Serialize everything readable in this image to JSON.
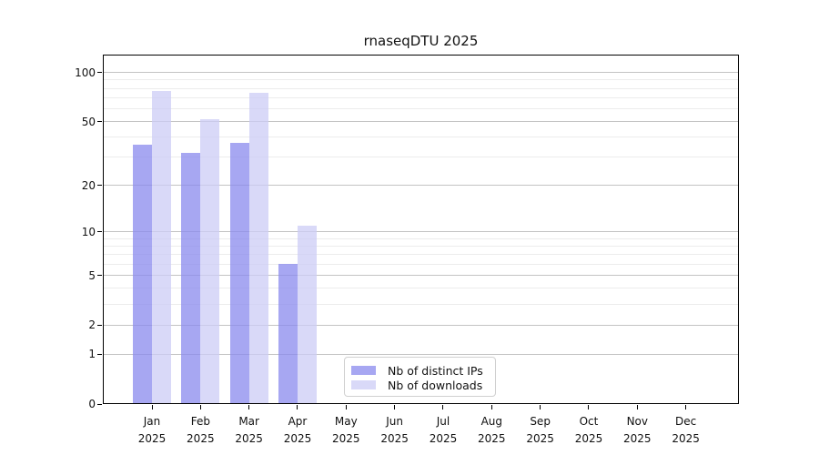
{
  "chart_data": {
    "type": "bar",
    "title": "rnaseqDTU 2025",
    "scale": "log1p",
    "ylim": [
      0,
      128
    ],
    "grid": true,
    "legend_position": "bottom-center-inside",
    "categories": [
      {
        "month": "Jan",
        "year": "2025"
      },
      {
        "month": "Feb",
        "year": "2025"
      },
      {
        "month": "Mar",
        "year": "2025"
      },
      {
        "month": "Apr",
        "year": "2025"
      },
      {
        "month": "May",
        "year": "2025"
      },
      {
        "month": "Jun",
        "year": "2025"
      },
      {
        "month": "Jul",
        "year": "2025"
      },
      {
        "month": "Aug",
        "year": "2025"
      },
      {
        "month": "Sep",
        "year": "2025"
      },
      {
        "month": "Oct",
        "year": "2025"
      },
      {
        "month": "Nov",
        "year": "2025"
      },
      {
        "month": "Dec",
        "year": "2025"
      }
    ],
    "series": [
      {
        "name": "Nb of distinct IPs",
        "color": "#a7a7f2",
        "fill": "rgba(138,138,238,0.75)",
        "values": [
          36,
          32,
          37,
          6,
          null,
          null,
          null,
          null,
          null,
          null,
          null,
          null
        ]
      },
      {
        "name": "Nb of downloads",
        "color": "#d9d9f8",
        "fill": "rgba(204,204,246,0.75)",
        "values": [
          77,
          52,
          75,
          11,
          null,
          null,
          null,
          null,
          null,
          null,
          null,
          null
        ]
      }
    ],
    "yticks": [
      0,
      1,
      2,
      5,
      10,
      20,
      50,
      100
    ],
    "minor_gridlines": [
      3,
      4,
      6,
      7,
      8,
      9,
      30,
      40,
      60,
      70,
      80,
      90
    ],
    "axis_color": "#000000",
    "major_grid_color": "#c3c3c3",
    "minor_grid_color": "#ececec"
  }
}
